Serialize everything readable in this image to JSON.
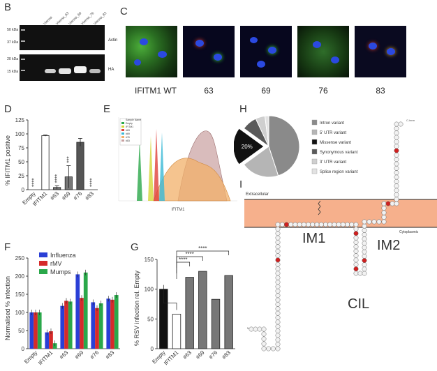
{
  "panels": {
    "b": "B",
    "c": "C",
    "d": "D",
    "e": "E",
    "f": "F",
    "g": "G",
    "h": "H",
    "i": "I"
  },
  "blot": {
    "lanes": [
      "Ladder",
      "Vienna",
      "Vienna_63",
      "Vienna_69",
      "Vienna_76",
      "Vienna_83"
    ],
    "top_markers": [
      "50 kDa",
      "37 kDa"
    ],
    "bottom_markers": [
      "20 kDa",
      "15 kDa"
    ],
    "top_label": "Actin",
    "bottom_label": "HA"
  },
  "microscopy": {
    "labels": [
      "IFITM1 WT",
      "63",
      "69",
      "76",
      "83"
    ]
  },
  "chart_data": [
    {
      "panel": "D",
      "type": "bar",
      "categories": [
        "Empty",
        "IFITM1",
        "#63",
        "#69",
        "#76",
        "#83"
      ],
      "values": [
        0,
        97,
        4,
        23,
        85,
        0
      ],
      "errors": [
        0,
        1,
        3,
        20,
        7,
        0
      ],
      "ylabel": "% IFITM1 positive",
      "ylim": [
        0,
        125
      ],
      "yticks": [
        "0",
        "25",
        "50",
        "75",
        "100",
        "125"
      ],
      "annotations": [
        "****",
        "****",
        "***",
        "****"
      ]
    },
    {
      "panel": "F",
      "type": "bar",
      "categories": [
        "Empty",
        "IFITM1",
        "#63",
        "#69",
        "#76",
        "#83"
      ],
      "series": [
        {
          "name": "Influenza",
          "color": "#2a3fd6",
          "values": [
            100,
            45,
            118,
            205,
            128,
            138
          ]
        },
        {
          "name": "rMV",
          "color": "#d62a2a",
          "values": [
            100,
            48,
            132,
            140,
            112,
            135
          ]
        },
        {
          "name": "Mumps",
          "color": "#2aa84a",
          "values": [
            100,
            15,
            130,
            210,
            125,
            148
          ]
        }
      ],
      "ylabel": "Normalised % infection",
      "ylim": [
        0,
        250
      ],
      "yticks": [
        "0",
        "50",
        "100",
        "150",
        "200",
        "250"
      ]
    },
    {
      "panel": "G",
      "type": "bar",
      "categories": [
        "Empty",
        "IFITM1",
        "#63",
        "#69",
        "#76",
        "#83"
      ],
      "values": [
        100,
        58,
        120,
        130,
        83,
        123
      ],
      "ylabel": "% RSV infection rel. Empty",
      "ylim": [
        0,
        150
      ],
      "yticks": [
        "0",
        "50",
        "100",
        "150"
      ],
      "annotations": [
        "****",
        "****",
        "****"
      ]
    },
    {
      "panel": "H",
      "type": "pie",
      "labels": [
        "Intron variant",
        "5' UTR variant",
        "Missense variant",
        "Synonymous variant",
        "3' UTR variant",
        "Splice region variant"
      ],
      "values": [
        45,
        20,
        20,
        8,
        5,
        2
      ],
      "colors": [
        "#8a8a8a",
        "#b5b5b5",
        "#111111",
        "#5a5a5a",
        "#cfcfcf",
        "#e2e2e2"
      ],
      "slice_label": "20%"
    }
  ],
  "flow": {
    "xlabel": "IFITM1",
    "legend": [
      "Sample Name",
      "Empty",
      "IFITM1",
      "#63",
      "#69",
      "#76",
      "#83"
    ]
  },
  "topology": {
    "extracellular": "Extracellular",
    "cytoplasm": "Cytoplasmic",
    "im1": "IM1",
    "im2": "IM2",
    "cil": "CIL",
    "n_term": "N-term",
    "c_term": "C-term"
  }
}
